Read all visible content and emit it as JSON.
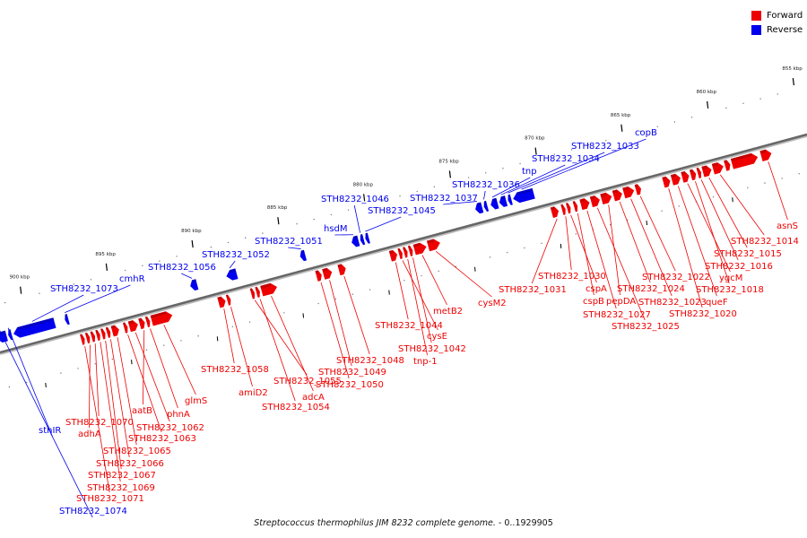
{
  "legend": [
    {
      "label": "Forward",
      "color": "#ee0000"
    },
    {
      "label": "Reverse",
      "color": "#0000ee"
    }
  ],
  "caption": {
    "organism": "Streptococcus thermophilus JIM 8232 complete genome.",
    "range": " - 0..1929905"
  },
  "colors": {
    "forward": "#ee0000",
    "reverse": "#0000ee",
    "axis": "#666666"
  },
  "scale": {
    "bp_min": 855,
    "bp_max": 902,
    "ticks": [
      "855 kbp",
      "860 kbp",
      "865 kbp",
      "870 kbp",
      "875 kbp",
      "880 kbp",
      "885 kbp",
      "890 kbp",
      "895 kbp",
      "900 kbp"
    ]
  },
  "forward_labels": [
    "asnS",
    "STH8232_1014",
    "STH8232_1015",
    "STH8232_1016",
    "STH8232_1018",
    "ygcM",
    "queF",
    "STH8232_1020",
    "STH8232_1022",
    "STH8232_1023",
    "STH8232_1024",
    "pepDA",
    "STH8232_1025",
    "STH8232_1027",
    "cspB",
    "cspA",
    "STH8232_1030",
    "STH8232_1031",
    "cysM2",
    "metB2",
    "STH8232_1042",
    "tnp-1",
    "cysE",
    "STH8232_1044",
    "STH8232_1048",
    "STH8232_1049",
    "STH8232_1050",
    "adcA",
    "STH8232_1054",
    "STH8232_1055",
    "amiD2",
    "STH8232_1058",
    "glmS",
    "phnA",
    "aatB",
    "STH8232_1062",
    "STH8232_1063",
    "STH8232_1065",
    "STH8232_1066",
    "STH8232_1067",
    "STH8232_1069",
    "STH8232_1070",
    "adhA",
    "STH8232_1071"
  ],
  "reverse_labels": [
    "copB",
    "STH8232_1033",
    "STH8232_1034",
    "tnp",
    "STH8232_1036",
    "STH8232_1037",
    "STH8232_1045",
    "STH8232_1046",
    "hsdM",
    "STH8232_1051",
    "STH8232_1052",
    "STH8232_1056",
    "cmhR",
    "STH8232_1073",
    "sthIR",
    "STH8232_1074"
  ],
  "genes": [
    {
      "s": 857.2,
      "e": 857.8,
      "strand": "+",
      "label": "asnS"
    },
    {
      "s": 858.0,
      "e": 859.5,
      "strand": "+"
    },
    {
      "s": 859.6,
      "e": 859.9,
      "strand": "+"
    },
    {
      "s": 860.0,
      "e": 860.6,
      "strand": "+",
      "label": "STH8232_1014"
    },
    {
      "s": 860.7,
      "e": 861.2,
      "strand": "+",
      "label": "STH8232_1015"
    },
    {
      "s": 861.3,
      "e": 861.5,
      "strand": "+",
      "label": "STH8232_1016"
    },
    {
      "s": 861.6,
      "e": 861.9,
      "strand": "+",
      "label": "STH8232_1018"
    },
    {
      "s": 862.0,
      "e": 862.4,
      "strand": "+",
      "label": "ygcM"
    },
    {
      "s": 862.5,
      "e": 863.0,
      "strand": "+",
      "label": "queF"
    },
    {
      "s": 863.1,
      "e": 863.5,
      "strand": "+",
      "label": "STH8232_1020"
    },
    {
      "s": 864.8,
      "e": 865.1,
      "strand": "+",
      "label": "STH8232_1022"
    },
    {
      "s": 865.2,
      "e": 865.8,
      "strand": "+",
      "label": "STH8232_1023"
    },
    {
      "s": 865.9,
      "e": 866.4,
      "strand": "+",
      "label": "STH8232_1024"
    },
    {
      "s": 866.5,
      "e": 867.1,
      "strand": "+",
      "label": "pepDA"
    },
    {
      "s": 867.2,
      "e": 867.7,
      "strand": "+",
      "label": "STH8232_1025"
    },
    {
      "s": 867.8,
      "e": 868.3,
      "strand": "+",
      "label": "STH8232_1027"
    },
    {
      "s": 868.5,
      "e": 868.7,
      "strand": "+",
      "label": "cspB"
    },
    {
      "s": 868.9,
      "e": 869.1,
      "strand": "+",
      "label": "cspA"
    },
    {
      "s": 869.2,
      "e": 869.4,
      "strand": "+",
      "label": "STH8232_1030"
    },
    {
      "s": 869.6,
      "e": 870.0,
      "strand": "+",
      "label": "STH8232_1031"
    },
    {
      "s": 870.7,
      "e": 871.9,
      "strand": "-",
      "label": "copB"
    },
    {
      "s": 872.0,
      "e": 872.2,
      "strand": "-",
      "label": "STH8232_1033"
    },
    {
      "s": 872.3,
      "e": 872.7,
      "strand": "-",
      "label": "STH8232_1034"
    },
    {
      "s": 872.8,
      "e": 873.2,
      "strand": "-",
      "label": "tnp"
    },
    {
      "s": 873.4,
      "e": 873.6,
      "strand": "-",
      "label": "STH8232_1036"
    },
    {
      "s": 873.7,
      "e": 874.1,
      "strand": "-",
      "label": "STH8232_1037"
    },
    {
      "s": 876.5,
      "e": 877.2,
      "strand": "+",
      "label": "cysM2"
    },
    {
      "s": 877.3,
      "e": 878.0,
      "strand": "+",
      "label": "metB2"
    },
    {
      "s": 878.1,
      "e": 878.3,
      "strand": "+",
      "label": "STH8232_1042"
    },
    {
      "s": 878.4,
      "e": 878.6,
      "strand": "+",
      "label": "tnp-1"
    },
    {
      "s": 878.7,
      "e": 878.9,
      "strand": "+",
      "label": "cysE"
    },
    {
      "s": 879.0,
      "e": 879.4,
      "strand": "+",
      "label": "STH8232_1044"
    },
    {
      "s": 880.3,
      "e": 880.5,
      "strand": "-",
      "label": "STH8232_1045"
    },
    {
      "s": 880.6,
      "e": 880.8,
      "strand": "-",
      "label": "STH8232_1046"
    },
    {
      "s": 880.9,
      "e": 881.3,
      "strand": "-",
      "label": "hsdM"
    },
    {
      "s": 882.0,
      "e": 882.4,
      "strand": "+",
      "label": "STH8232_1048"
    },
    {
      "s": 882.8,
      "e": 883.3,
      "strand": "+",
      "label": "STH8232_1049"
    },
    {
      "s": 883.4,
      "e": 883.7,
      "strand": "+",
      "label": "STH8232_1050"
    },
    {
      "s": 884.0,
      "e": 884.3,
      "strand": "-",
      "label": "STH8232_1051"
    },
    {
      "s": 886.0,
      "e": 886.9,
      "strand": "+",
      "label": "adcA"
    },
    {
      "s": 887.0,
      "e": 887.2,
      "strand": "+",
      "label": "STH8232_1054"
    },
    {
      "s": 887.3,
      "e": 887.5,
      "strand": "+",
      "label": "STH8232_1055"
    },
    {
      "s": 888.0,
      "e": 888.6,
      "strand": "-",
      "label": "STH8232_1052"
    },
    {
      "s": 888.7,
      "e": 888.9,
      "strand": "+",
      "label": "amiD2"
    },
    {
      "s": 889.0,
      "e": 889.4,
      "strand": "+",
      "label": "STH8232_1058"
    },
    {
      "s": 890.3,
      "e": 890.7,
      "strand": "-",
      "label": "STH8232_1056"
    },
    {
      "s": 892.1,
      "e": 893.3,
      "strand": "+",
      "label": "glmS"
    },
    {
      "s": 893.4,
      "e": 893.6,
      "strand": "+",
      "label": "phnA"
    },
    {
      "s": 893.7,
      "e": 894.0,
      "strand": "+",
      "label": "aatB"
    },
    {
      "s": 894.1,
      "e": 894.6,
      "strand": "+",
      "label": "STH8232_1062"
    },
    {
      "s": 894.7,
      "e": 894.9,
      "strand": "+",
      "label": "STH8232_1063"
    },
    {
      "s": 895.2,
      "e": 895.6,
      "strand": "+",
      "label": "STH8232_1065"
    },
    {
      "s": 895.7,
      "e": 895.9,
      "strand": "+",
      "label": "STH8232_1066"
    },
    {
      "s": 896.0,
      "e": 896.2,
      "strand": "+",
      "label": "STH8232_1067"
    },
    {
      "s": 896.3,
      "e": 896.5,
      "strand": "+",
      "label": "STH8232_1069"
    },
    {
      "s": 896.6,
      "e": 896.8,
      "strand": "+",
      "label": "STH8232_1070"
    },
    {
      "s": 896.9,
      "e": 897.1,
      "strand": "+",
      "label": "adhA"
    },
    {
      "s": 897.2,
      "e": 897.4,
      "strand": "+",
      "label": "STH8232_1071"
    },
    {
      "s": 897.8,
      "e": 898.0,
      "strand": "-",
      "label": "cmhR"
    },
    {
      "s": 898.6,
      "e": 901.0,
      "strand": "-",
      "label": "STH8232_1073"
    },
    {
      "s": 901.1,
      "e": 901.3,
      "strand": "-",
      "label": "sthIR"
    },
    {
      "s": 901.4,
      "e": 902.0,
      "strand": "-",
      "label": "STH8232_1074"
    }
  ]
}
